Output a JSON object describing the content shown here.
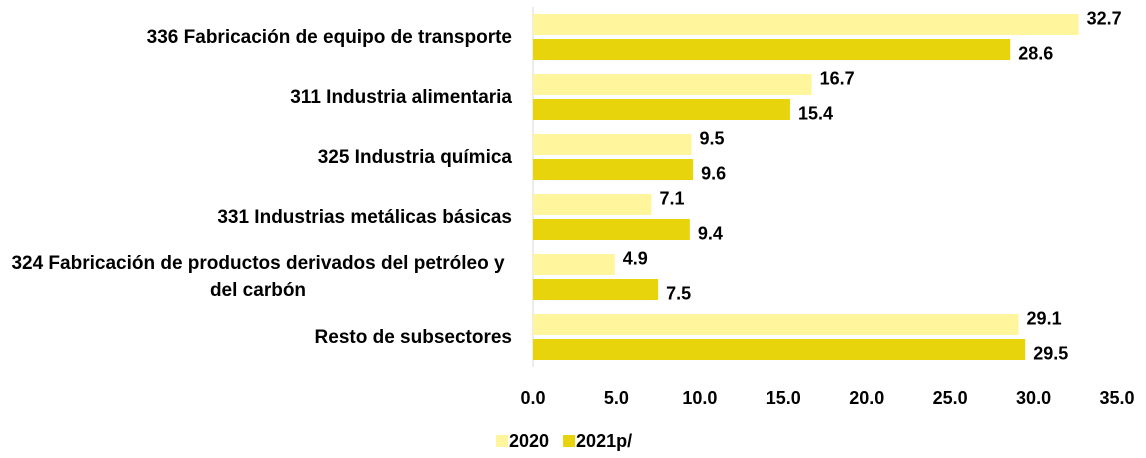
{
  "chart_data": {
    "type": "bar",
    "orientation": "horizontal",
    "categories": [
      "336 Fabricación de equipo de transporte",
      "311 Industria alimentaria",
      "325 Industria química",
      "331 Industrias metálicas básicas",
      "324 Fabricación de productos derivados del petróleo y del carbón",
      "Resto de subsectores"
    ],
    "series": [
      {
        "name": "2020",
        "color": "#fff59d",
        "values": [
          32.7,
          16.7,
          9.5,
          7.1,
          4.9,
          29.1
        ]
      },
      {
        "name": "2021p/",
        "color": "#e8d40c",
        "values": [
          28.6,
          15.4,
          9.6,
          9.4,
          7.5,
          29.5
        ]
      }
    ],
    "xlim": [
      0,
      35
    ],
    "xticks": [
      {
        "value": 0,
        "label": "0.0"
      },
      {
        "value": 5,
        "label": "5.0"
      },
      {
        "value": 10,
        "label": "10.0"
      },
      {
        "value": 15,
        "label": "15.0"
      },
      {
        "value": 20,
        "label": "20.0"
      },
      {
        "value": 25,
        "label": "25.0"
      },
      {
        "value": 30,
        "label": "30.0"
      },
      {
        "value": 35,
        "label": "35.0"
      }
    ],
    "legend": "bottom"
  }
}
